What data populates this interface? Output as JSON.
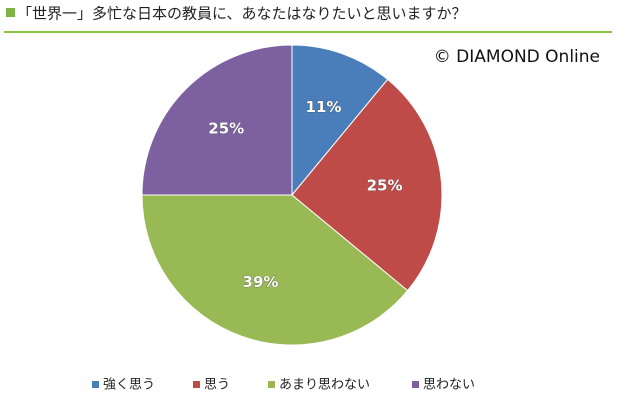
{
  "chart_data": {
    "type": "pie",
    "title": "「世界一」多忙な日本の教員に、あなたはなりたいと思いますか？",
    "credit": "© DIAMOND Online",
    "categories": [
      "強く思う",
      "思う",
      "あまり思わない",
      "思わない"
    ],
    "values": [
      11,
      25,
      39,
      25
    ],
    "value_labels": [
      "11%",
      "25%",
      "39%",
      "25%"
    ],
    "colors": [
      "#4a7ebb",
      "#be4b48",
      "#98b954",
      "#7d60a0"
    ]
  }
}
